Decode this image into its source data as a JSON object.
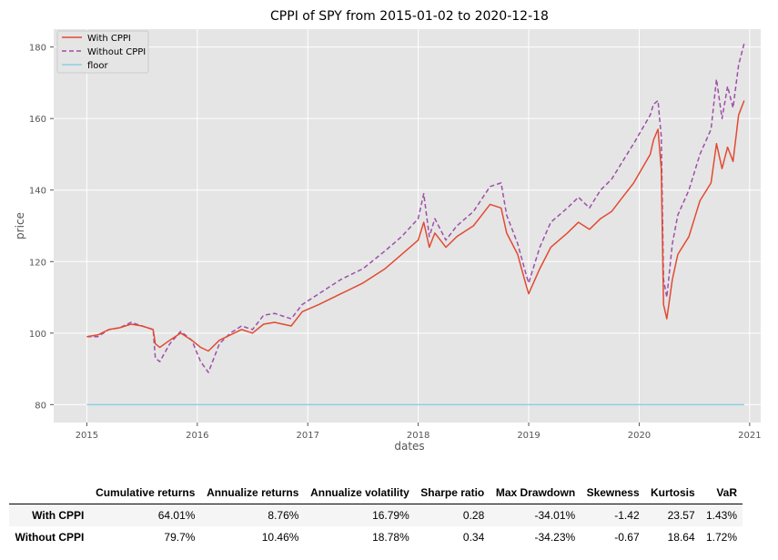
{
  "chart_data": {
    "type": "line",
    "title": "CPPI of SPY from 2015-01-02 to 2020-12-18",
    "xlabel": "dates",
    "ylabel": "price",
    "xlim": [
      2014.7,
      2021.1
    ],
    "ylim": [
      75,
      185
    ],
    "x_ticks": [
      2015,
      2016,
      2017,
      2018,
      2019,
      2020,
      2021
    ],
    "y_ticks": [
      80,
      100,
      120,
      140,
      160,
      180
    ],
    "grid": true,
    "legend": "top-left",
    "colors": {
      "With CPPI": "#e24a33",
      "Without CPPI": "#9e4fa8",
      "floor": "#8ecfe3"
    },
    "series": [
      {
        "name": "With CPPI",
        "style": "solid",
        "x": [
          2015.0,
          2015.1,
          2015.2,
          2015.3,
          2015.4,
          2015.5,
          2015.6,
          2015.62,
          2015.66,
          2015.75,
          2015.85,
          2015.95,
          2016.03,
          2016.1,
          2016.2,
          2016.3,
          2016.4,
          2016.5,
          2016.6,
          2016.7,
          2016.85,
          2016.95,
          2017.1,
          2017.3,
          2017.5,
          2017.7,
          2017.85,
          2018.0,
          2018.05,
          2018.1,
          2018.15,
          2018.25,
          2018.35,
          2018.5,
          2018.65,
          2018.75,
          2018.8,
          2018.9,
          2018.98,
          2019.0,
          2019.1,
          2019.2,
          2019.35,
          2019.45,
          2019.55,
          2019.65,
          2019.75,
          2019.85,
          2019.95,
          2020.1,
          2020.13,
          2020.17,
          2020.2,
          2020.22,
          2020.25,
          2020.3,
          2020.35,
          2020.45,
          2020.55,
          2020.65,
          2020.7,
          2020.75,
          2020.8,
          2020.85,
          2020.9,
          2020.95
        ],
        "values": [
          99,
          99.5,
          101,
          101.5,
          102.5,
          102,
          101,
          97,
          96,
          98,
          100,
          98,
          96,
          95,
          98,
          99.5,
          101,
          100,
          102.5,
          103,
          102,
          106,
          108,
          111,
          114,
          118,
          122,
          126,
          131,
          124,
          128,
          124,
          127,
          130,
          136,
          135,
          128,
          122,
          113,
          111,
          118,
          124,
          128,
          131,
          129,
          132,
          134,
          138,
          142,
          150,
          154,
          157,
          146,
          108,
          104,
          115,
          122,
          127,
          137,
          142,
          153,
          146,
          152,
          148,
          161,
          165
        ]
      },
      {
        "name": "Without CPPI",
        "style": "dashed",
        "x": [
          2015.0,
          2015.1,
          2015.2,
          2015.3,
          2015.4,
          2015.5,
          2015.6,
          2015.62,
          2015.66,
          2015.75,
          2015.85,
          2015.95,
          2016.03,
          2016.1,
          2016.2,
          2016.3,
          2016.4,
          2016.5,
          2016.6,
          2016.7,
          2016.85,
          2016.95,
          2017.1,
          2017.3,
          2017.5,
          2017.7,
          2017.85,
          2018.0,
          2018.05,
          2018.1,
          2018.15,
          2018.25,
          2018.35,
          2018.5,
          2018.65,
          2018.75,
          2018.8,
          2018.9,
          2018.98,
          2019.0,
          2019.1,
          2019.2,
          2019.35,
          2019.45,
          2019.55,
          2019.65,
          2019.75,
          2019.85,
          2019.95,
          2020.1,
          2020.13,
          2020.17,
          2020.2,
          2020.22,
          2020.25,
          2020.3,
          2020.35,
          2020.45,
          2020.55,
          2020.65,
          2020.7,
          2020.75,
          2020.8,
          2020.85,
          2020.9,
          2020.95
        ],
        "values": [
          99,
          99,
          101,
          101.5,
          103,
          102,
          101,
          93,
          92,
          97,
          100.5,
          98,
          92,
          89,
          97,
          100,
          102,
          101,
          105,
          105.5,
          104,
          108,
          111,
          115,
          118,
          123,
          127,
          132,
          139,
          127,
          132,
          126,
          130,
          134,
          141,
          142,
          133,
          125,
          116,
          114,
          124,
          131,
          135,
          138,
          135,
          140,
          143,
          148,
          153,
          161,
          164,
          165,
          155,
          115,
          110,
          125,
          133,
          140,
          150,
          157,
          171,
          160,
          169,
          163,
          175,
          181
        ]
      },
      {
        "name": "floor",
        "style": "solid",
        "x": [
          2015.0,
          2020.95
        ],
        "values": [
          80,
          80
        ]
      }
    ]
  },
  "table": {
    "columns": [
      "Cumulative returns",
      "Annualize returns",
      "Annualize volatility",
      "Sharpe ratio",
      "Max Drawdown",
      "Skewness",
      "Kurtosis",
      "VaR"
    ],
    "rows": [
      {
        "label": "With CPPI",
        "values": [
          "64.01%",
          "8.76%",
          "16.79%",
          "0.28",
          "-34.01%",
          "-1.42",
          "23.57",
          "1.43%"
        ]
      },
      {
        "label": "Without CPPI",
        "values": [
          "79.7%",
          "10.46%",
          "18.78%",
          "0.34",
          "-34.23%",
          "-0.67",
          "18.64",
          "1.72%"
        ]
      }
    ]
  }
}
